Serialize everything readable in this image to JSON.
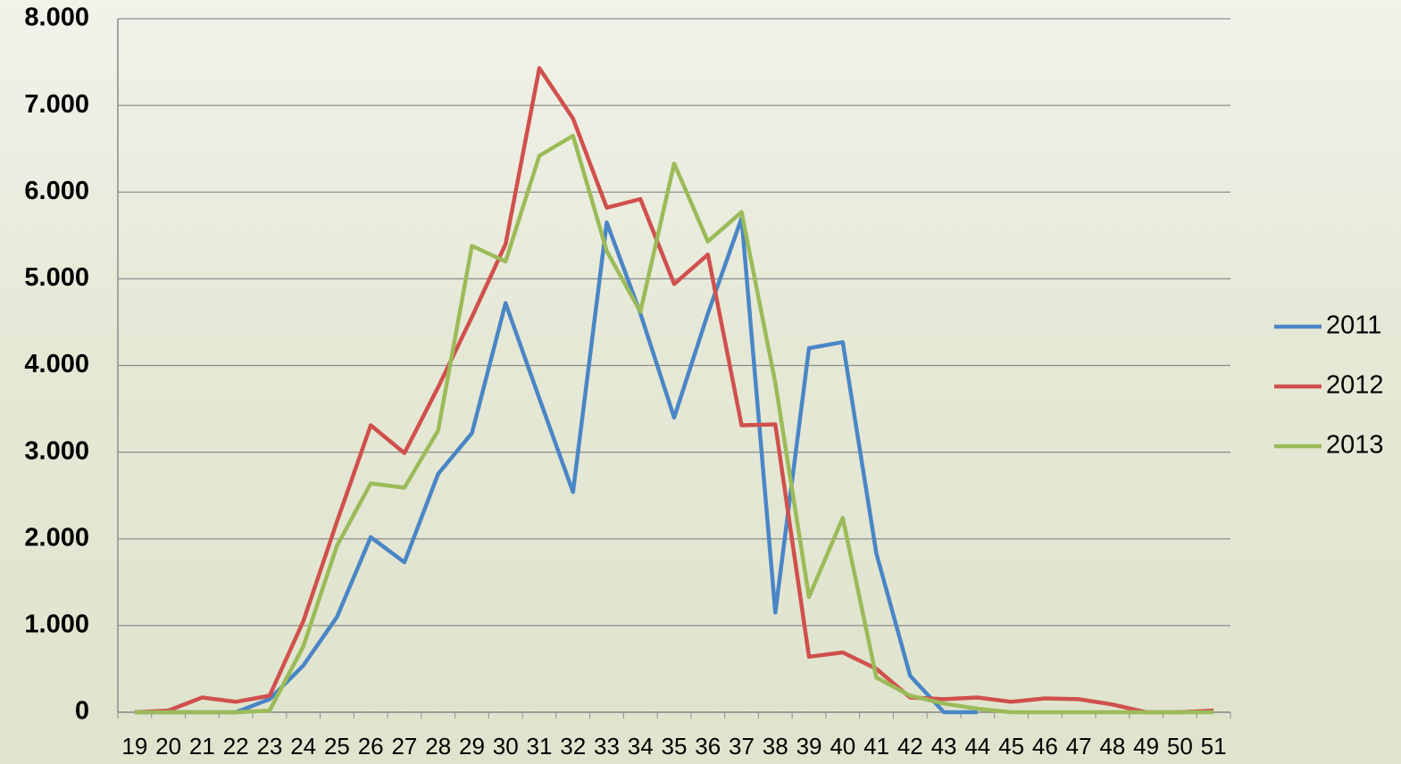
{
  "chart_data": {
    "type": "line",
    "categories": [
      "19",
      "20",
      "21",
      "22",
      "23",
      "24",
      "25",
      "26",
      "27",
      "28",
      "29",
      "30",
      "31",
      "32",
      "33",
      "34",
      "35",
      "36",
      "37",
      "38",
      "39",
      "40",
      "41",
      "42",
      "43",
      "44",
      "45",
      "46",
      "47",
      "48",
      "49",
      "50",
      "51"
    ],
    "series": [
      {
        "name": "2011",
        "color": "#4a86c6",
        "values": [
          0,
          0,
          0,
          0,
          150,
          540,
          1100,
          2020,
          1730,
          2750,
          3220,
          4720,
          3620,
          2540,
          5650,
          4600,
          3400,
          4600,
          5700,
          1150,
          4200,
          4270,
          1830,
          420,
          0,
          0,
          null,
          null,
          null,
          null,
          null,
          null,
          null
        ]
      },
      {
        "name": "2012",
        "color": "#d0504d",
        "values": [
          0,
          20,
          170,
          120,
          190,
          1050,
          2200,
          3310,
          2990,
          3750,
          4560,
          5400,
          7430,
          6850,
          5820,
          5920,
          4940,
          5280,
          3310,
          3320,
          640,
          690,
          500,
          170,
          150,
          170,
          120,
          160,
          150,
          90,
          0,
          0,
          20
        ]
      },
      {
        "name": "2013",
        "color": "#9bbb59",
        "values": [
          0,
          0,
          0,
          0,
          20,
          760,
          1920,
          2640,
          2590,
          3250,
          5380,
          5200,
          6420,
          6650,
          5320,
          4620,
          6330,
          5430,
          5770,
          3800,
          1330,
          2240,
          400,
          190,
          100,
          40,
          0,
          0,
          0,
          0,
          0,
          0,
          0
        ]
      }
    ],
    "ylim": [
      0,
      8000
    ],
    "yticks": [
      0,
      {
        "value": 1000,
        "label": "1.000"
      },
      {
        "value": 2000,
        "label": "2.000"
      },
      {
        "value": 3000,
        "label": "3.000"
      },
      {
        "value": 4000,
        "label": "4.000"
      },
      {
        "value": 5000,
        "label": "5.000"
      },
      {
        "value": 6000,
        "label": "6.000"
      },
      {
        "value": 7000,
        "label": "7.000"
      },
      {
        "value": 8000,
        "label": "8.000"
      }
    ],
    "grid": true,
    "legend": "right"
  }
}
